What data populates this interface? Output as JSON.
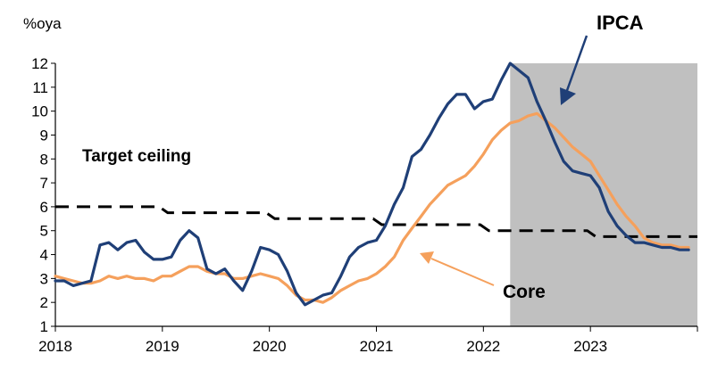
{
  "chart_data": {
    "type": "line",
    "ylabel": "%oya",
    "ylim": [
      1,
      12
    ],
    "y_ticks": [
      1,
      2,
      3,
      4,
      5,
      6,
      7,
      8,
      9,
      10,
      11,
      12
    ],
    "x_tick_labels": [
      "2018",
      "2019",
      "2020",
      "2021",
      "2022",
      "2023"
    ],
    "x_range": [
      2018.0,
      2024.0
    ],
    "grid": false,
    "shaded_region": {
      "x_start": 2022.25,
      "x_end": 2024.0,
      "color": "#c0c0c0"
    },
    "series": [
      {
        "name": "IPCA",
        "color": "#1f3f77",
        "style": "solid",
        "x": [
          2018.0,
          2018.083,
          2018.167,
          2018.25,
          2018.333,
          2018.417,
          2018.5,
          2018.583,
          2018.667,
          2018.75,
          2018.833,
          2018.917,
          2019.0,
          2019.083,
          2019.167,
          2019.25,
          2019.333,
          2019.417,
          2019.5,
          2019.583,
          2019.667,
          2019.75,
          2019.833,
          2019.917,
          2020.0,
          2020.083,
          2020.167,
          2020.25,
          2020.333,
          2020.417,
          2020.5,
          2020.583,
          2020.667,
          2020.75,
          2020.833,
          2020.917,
          2021.0,
          2021.083,
          2021.167,
          2021.25,
          2021.333,
          2021.417,
          2021.5,
          2021.583,
          2021.667,
          2021.75,
          2021.833,
          2021.917,
          2022.0,
          2022.083,
          2022.167,
          2022.25,
          2022.333,
          2022.417,
          2022.5,
          2022.583,
          2022.667,
          2022.75,
          2022.833,
          2022.917,
          2023.0,
          2023.083,
          2023.167,
          2023.25,
          2023.333,
          2023.417,
          2023.5,
          2023.583,
          2023.667,
          2023.75,
          2023.833,
          2023.917
        ],
        "values": [
          2.9,
          2.9,
          2.7,
          2.8,
          2.9,
          4.4,
          4.5,
          4.2,
          4.5,
          4.6,
          4.1,
          3.8,
          3.8,
          3.9,
          4.6,
          5.0,
          4.7,
          3.4,
          3.2,
          3.4,
          2.9,
          2.5,
          3.3,
          4.3,
          4.2,
          4.0,
          3.3,
          2.4,
          1.9,
          2.1,
          2.3,
          2.4,
          3.1,
          3.9,
          4.3,
          4.5,
          4.6,
          5.2,
          6.1,
          6.8,
          8.1,
          8.4,
          9.0,
          9.7,
          10.3,
          10.7,
          10.7,
          10.1,
          10.4,
          10.5,
          11.3,
          12.0,
          11.7,
          11.4,
          10.4,
          9.6,
          8.7,
          7.9,
          7.5,
          7.4,
          7.3,
          6.8,
          5.8,
          5.2,
          4.8,
          4.5,
          4.5,
          4.4,
          4.3,
          4.3,
          4.2,
          4.2
        ]
      },
      {
        "name": "Core",
        "color": "#f5a05c",
        "style": "solid",
        "x": [
          2018.0,
          2018.083,
          2018.167,
          2018.25,
          2018.333,
          2018.417,
          2018.5,
          2018.583,
          2018.667,
          2018.75,
          2018.833,
          2018.917,
          2019.0,
          2019.083,
          2019.167,
          2019.25,
          2019.333,
          2019.417,
          2019.5,
          2019.583,
          2019.667,
          2019.75,
          2019.833,
          2019.917,
          2020.0,
          2020.083,
          2020.167,
          2020.25,
          2020.333,
          2020.417,
          2020.5,
          2020.583,
          2020.667,
          2020.75,
          2020.833,
          2020.917,
          2021.0,
          2021.083,
          2021.167,
          2021.25,
          2021.333,
          2021.417,
          2021.5,
          2021.583,
          2021.667,
          2021.75,
          2021.833,
          2021.917,
          2022.0,
          2022.083,
          2022.167,
          2022.25,
          2022.333,
          2022.417,
          2022.5,
          2022.583,
          2022.667,
          2022.75,
          2022.833,
          2022.917,
          2023.0,
          2023.083,
          2023.167,
          2023.25,
          2023.333,
          2023.417,
          2023.5,
          2023.583,
          2023.667,
          2023.75,
          2023.833,
          2023.917
        ],
        "values": [
          3.1,
          3.0,
          2.9,
          2.8,
          2.8,
          2.9,
          3.1,
          3.0,
          3.1,
          3.0,
          3.0,
          2.9,
          3.1,
          3.1,
          3.3,
          3.5,
          3.5,
          3.3,
          3.2,
          3.2,
          3.0,
          3.0,
          3.1,
          3.2,
          3.1,
          3.0,
          2.7,
          2.3,
          2.1,
          2.1,
          2.0,
          2.2,
          2.5,
          2.7,
          2.9,
          3.0,
          3.2,
          3.5,
          3.9,
          4.6,
          5.1,
          5.6,
          6.1,
          6.5,
          6.9,
          7.1,
          7.3,
          7.7,
          8.2,
          8.8,
          9.2,
          9.5,
          9.6,
          9.8,
          9.9,
          9.6,
          9.3,
          8.9,
          8.5,
          8.2,
          7.9,
          7.3,
          6.7,
          6.1,
          5.6,
          5.2,
          4.7,
          4.5,
          4.4,
          4.4,
          4.3,
          4.3
        ]
      },
      {
        "name": "Target ceiling",
        "color": "#000000",
        "style": "dashed",
        "x": [
          2018.0,
          2018.97,
          2019.05,
          2019.97,
          2020.05,
          2020.97,
          2021.05,
          2021.97,
          2022.05,
          2022.97,
          2023.05,
          2024.0
        ],
        "values": [
          6.0,
          6.0,
          5.75,
          5.75,
          5.5,
          5.5,
          5.25,
          5.25,
          5.0,
          5.0,
          4.75,
          4.75
        ]
      }
    ],
    "annotations": [
      {
        "text": "IPCA",
        "series": "IPCA"
      },
      {
        "text": "Core",
        "series": "Core"
      },
      {
        "text": "Target ceiling",
        "series": "Target ceiling"
      }
    ]
  }
}
